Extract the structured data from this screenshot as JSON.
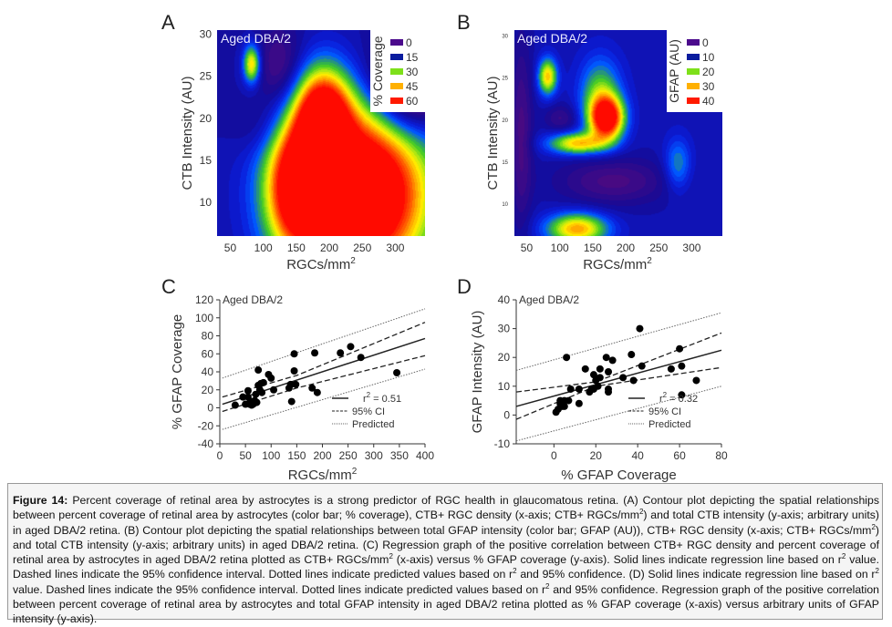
{
  "figure": {
    "caption_label": "Figure 14:",
    "caption_segments": [
      {
        "t": "Percent coverage of retinal area by astrocytes is a strong predictor of RGC health in glaucomatous retina. (A) Contour plot depicting the spatial relationships between percent coverage of retinal area by astrocytes (color bar; % coverage), CTB+ RGC density (x-axis; CTB+ RGCs/mm"
      },
      {
        "sup": "2"
      },
      {
        "t": ") and total CTB intensity (y-axis; arbitrary units) in aged DBA/2 retina. (B) Contour plot depicting the spatial relationships between total GFAP intensity (color bar; GFAP (AU)), CTB+ RGC density (x-axis; CTB+ RGCs/mm"
      },
      {
        "sup": "2"
      },
      {
        "t": ") and total CTB intensity (y-axis; arbitrary units) in aged DBA/2 retina. (C) Regression graph of the positive correlation between CTB+ RGC density and percent coverage of retinal area by astrocytes in aged DBA/2 retina plotted as CTB+ RGCs/mm"
      },
      {
        "sup": "2"
      },
      {
        "t": " (x-axis) versus % GFAP coverage (y-axis). Solid lines indicate regression line based on r"
      },
      {
        "sup": "2"
      },
      {
        "t": " value. Dashed lines indicate the 95% confidence interval. Dotted lines indicate predicted values based on r"
      },
      {
        "sup": "2"
      },
      {
        "t": " and 95% confidence. (D) Solid lines indicate regression line based on r"
      },
      {
        "sup": "2"
      },
      {
        "t": " value. Dashed lines indicate the 95% confidence interval. Dotted lines indicate predicted values based on r"
      },
      {
        "sup": "2"
      },
      {
        "t": " and 95% confidence. Regression graph of the positive correlation between percent coverage of retinal area by astrocytes and total GFAP intensity in aged DBA/2 retina plotted as % GFAP coverage (x-axis) versus arbitrary units of GFAP intensity (y-axis)."
      }
    ]
  },
  "chart_data": [
    {
      "panel": "A",
      "type": "heatmap",
      "subtype": "contour",
      "annotation": "Aged DBA/2",
      "xlabel": "RGCs/mm",
      "xlabel_sup": "2",
      "ylabel": "CTB Intensity (AU)",
      "xlim": [
        30,
        345
      ],
      "ylim": [
        6,
        30.5
      ],
      "xticks": [
        50,
        100,
        150,
        200,
        250,
        300
      ],
      "yticks": [
        10,
        15,
        20,
        25,
        30
      ],
      "colorbar": {
        "title": "% Coverage",
        "placement": "top-right",
        "levels": [
          0,
          15,
          30,
          45,
          60
        ],
        "colors": [
          "#4b0a8c",
          "#0a1c9e",
          "#7ee01a",
          "#ffb000",
          "#ff1a00"
        ]
      },
      "value_range": [
        0,
        60
      ],
      "background_value": 12,
      "peaks": [
        {
          "x": 82,
          "y": 26.5,
          "sx": 9,
          "sy": 1.6,
          "amp": 34
        },
        {
          "x": 125,
          "y": 26,
          "sx": 25,
          "sy": 3.5,
          "amp": -12
        },
        {
          "x": 95,
          "y": 19,
          "sx": 30,
          "sy": 2.5,
          "amp": -6
        },
        {
          "x": 240,
          "y": 11,
          "sx": 75,
          "sy": 7,
          "amp": 80
        },
        {
          "x": 190,
          "y": 20,
          "sx": 28,
          "sy": 4,
          "amp": 55
        },
        {
          "x": 150,
          "y": 12,
          "sx": 30,
          "sy": 5,
          "amp": 40
        },
        {
          "x": 320,
          "y": 24,
          "sx": 40,
          "sy": 4,
          "amp": -30
        }
      ]
    },
    {
      "panel": "B",
      "type": "heatmap",
      "subtype": "contour",
      "annotation": "Aged DBA/2",
      "xlabel": "RGCs/mm",
      "xlabel_sup": "2",
      "ylabel": "CTB Intensity (AU)",
      "xlim": [
        30,
        345
      ],
      "ylim": [
        6,
        30.5
      ],
      "xticks": [
        50,
        100,
        150,
        200,
        250,
        300
      ],
      "yticks": [
        10,
        15,
        20,
        25,
        30
      ],
      "colorbar": {
        "title": "GFAP (AU)",
        "placement": "top-right",
        "levels": [
          0,
          10,
          20,
          30,
          40
        ],
        "colors": [
          "#4b0a8c",
          "#0a1c9e",
          "#7ee01a",
          "#ffb000",
          "#ff1a00"
        ]
      },
      "value_range": [
        0,
        40
      ],
      "background_value": 9,
      "peaks": [
        {
          "x": 170,
          "y": 20,
          "sx": 18,
          "sy": 1.8,
          "amp": 36
        },
        {
          "x": 160,
          "y": 23,
          "sx": 22,
          "sy": 3,
          "amp": 14
        },
        {
          "x": 125,
          "y": 17,
          "sx": 30,
          "sy": 0.9,
          "amp": 22
        },
        {
          "x": 80,
          "y": 25,
          "sx": 10,
          "sy": 1.5,
          "amp": 22
        },
        {
          "x": 125,
          "y": 6.8,
          "sx": 32,
          "sy": 1.3,
          "amp": 24
        },
        {
          "x": 278,
          "y": 14.5,
          "sx": 14,
          "sy": 2.2,
          "amp": 10
        },
        {
          "x": 40,
          "y": 18,
          "sx": 12,
          "sy": 8,
          "amp": -8
        },
        {
          "x": 180,
          "y": 12.5,
          "sx": 60,
          "sy": 2,
          "amp": -8
        },
        {
          "x": 100,
          "y": 20,
          "sx": 18,
          "sy": 1.2,
          "amp": -6
        }
      ]
    },
    {
      "panel": "C",
      "type": "scatter",
      "annotation": "Aged DBA/2",
      "xlabel": "RGCs/mm",
      "xlabel_sup": "2",
      "ylabel": "% GFAP Coverage",
      "xlim": [
        0,
        400
      ],
      "ylim": [
        -40,
        120
      ],
      "xticks": [
        0,
        50,
        100,
        150,
        200,
        250,
        300,
        350,
        400
      ],
      "yticks": [
        -40,
        -20,
        0,
        20,
        40,
        60,
        80,
        100,
        120
      ],
      "legend": {
        "placement": "bottom-right",
        "entries": [
          {
            "label": "r² = 0.51",
            "style": "solid"
          },
          {
            "label": "95% CI",
            "style": "dashed"
          },
          {
            "label": "Predicted",
            "style": "dotted"
          }
        ]
      },
      "points": [
        [
          30,
          3
        ],
        [
          45,
          12
        ],
        [
          50,
          4
        ],
        [
          55,
          19
        ],
        [
          55,
          12
        ],
        [
          58,
          4
        ],
        [
          60,
          7
        ],
        [
          62,
          3
        ],
        [
          65,
          4
        ],
        [
          68,
          8
        ],
        [
          70,
          15
        ],
        [
          72,
          6
        ],
        [
          75,
          42
        ],
        [
          75,
          25
        ],
        [
          78,
          20
        ],
        [
          80,
          27
        ],
        [
          82,
          17
        ],
        [
          85,
          28
        ],
        [
          95,
          37
        ],
        [
          100,
          33
        ],
        [
          105,
          20
        ],
        [
          135,
          22
        ],
        [
          138,
          26
        ],
        [
          140,
          7
        ],
        [
          145,
          60
        ],
        [
          145,
          41
        ],
        [
          148,
          26
        ],
        [
          180,
          22
        ],
        [
          185,
          61
        ],
        [
          190,
          17
        ],
        [
          235,
          61
        ],
        [
          255,
          68
        ],
        [
          275,
          56
        ],
        [
          345,
          39
        ]
      ],
      "regression": {
        "x": [
          5,
          400
        ],
        "y": [
          4,
          77
        ]
      },
      "ci_upper": {
        "x": [
          5,
          150,
          400
        ],
        "y": [
          12,
          36,
          95
        ]
      },
      "ci_lower": {
        "x": [
          5,
          150,
          400
        ],
        "y": [
          -4,
          22,
          58
        ]
      },
      "pred_upper": {
        "x": [
          5,
          400
        ],
        "y": [
          33,
          110
        ]
      },
      "pred_lower": {
        "x": [
          5,
          400
        ],
        "y": [
          -24,
          43
        ]
      }
    },
    {
      "panel": "D",
      "type": "scatter",
      "annotation": "Aged DBA/2",
      "xlabel": "% GFAP Coverage",
      "ylabel": "GFAP Intensity (AU)",
      "xlim": [
        -18,
        80
      ],
      "ylim": [
        -10,
        40
      ],
      "xticks": [
        0,
        20,
        40,
        60,
        80
      ],
      "yticks": [
        -10,
        0,
        10,
        20,
        30,
        40
      ],
      "legend": {
        "placement": "bottom-right",
        "entries": [
          {
            "label": "r² = 0.32",
            "style": "solid"
          },
          {
            "label": "95% CI",
            "style": "dashed"
          },
          {
            "label": "Predicted",
            "style": "dotted"
          }
        ]
      },
      "points": [
        [
          1,
          1
        ],
        [
          2,
          2
        ],
        [
          3,
          4
        ],
        [
          3,
          5
        ],
        [
          4,
          3
        ],
        [
          5,
          5
        ],
        [
          5,
          3
        ],
        [
          6,
          20
        ],
        [
          7,
          5
        ],
        [
          8,
          9
        ],
        [
          12,
          9
        ],
        [
          12,
          4
        ],
        [
          15,
          16
        ],
        [
          17,
          8
        ],
        [
          18,
          9
        ],
        [
          19,
          14
        ],
        [
          19,
          9
        ],
        [
          20,
          12
        ],
        [
          21,
          10
        ],
        [
          22,
          13
        ],
        [
          22,
          16
        ],
        [
          25,
          20
        ],
        [
          26,
          15
        ],
        [
          26,
          9
        ],
        [
          26,
          8
        ],
        [
          28,
          19
        ],
        [
          33,
          13
        ],
        [
          37,
          21
        ],
        [
          38,
          12
        ],
        [
          41,
          30
        ],
        [
          42,
          17
        ],
        [
          56,
          16
        ],
        [
          60,
          23
        ],
        [
          61,
          7
        ],
        [
          61,
          17
        ],
        [
          68,
          12
        ]
      ],
      "regression": {
        "x": [
          -18,
          80
        ],
        "y": [
          3,
          22.5
        ]
      },
      "ci_upper": {
        "x": [
          -18,
          20,
          80
        ],
        "y": [
          8,
          11.5,
          28.5
        ]
      },
      "ci_lower": {
        "x": [
          -18,
          20,
          80
        ],
        "y": [
          -1.5,
          10,
          16.5
        ]
      },
      "pred_upper": {
        "x": [
          -18,
          80
        ],
        "y": [
          15.5,
          35.5
        ]
      },
      "pred_lower": {
        "x": [
          -18,
          80
        ],
        "y": [
          -9,
          10
        ]
      }
    }
  ]
}
